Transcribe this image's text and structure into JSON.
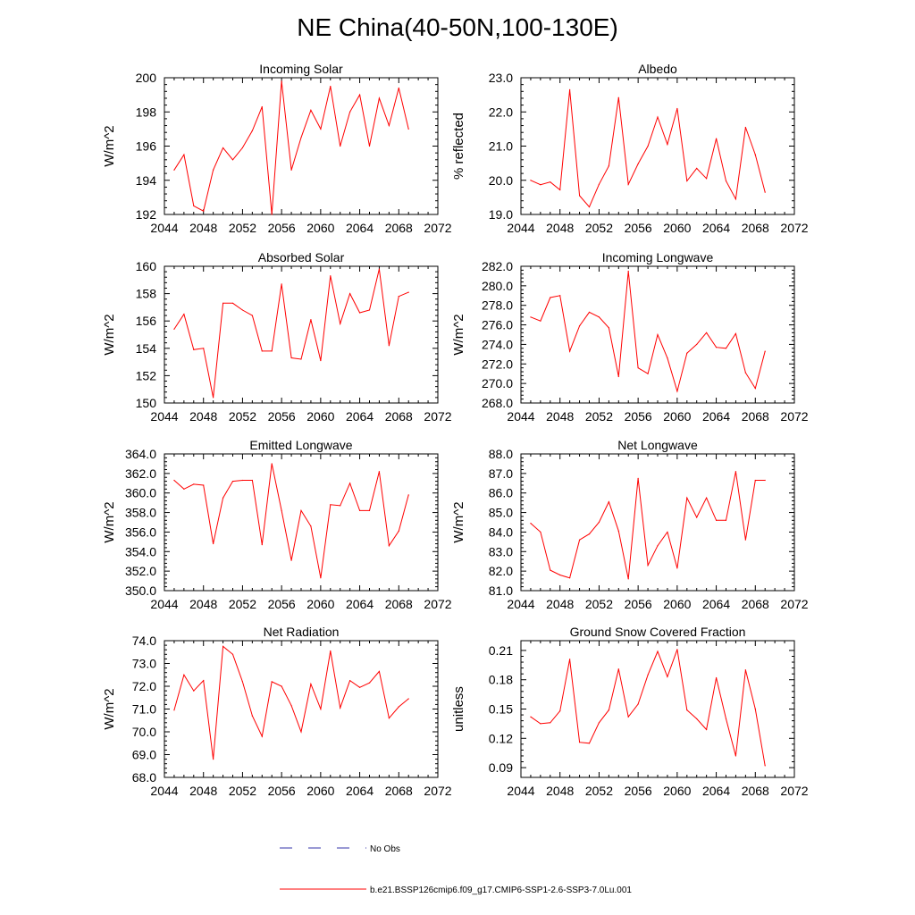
{
  "title": "NE China(40-50N,100-130E)",
  "colors": {
    "model_line": "#ff0000",
    "obs_line": "#3333aa",
    "axis": "#000000"
  },
  "legend": {
    "obs_label": "No Obs",
    "model_label": "b.e21.BSSP126cmip6.f09_g17.CMIP6-SSP1-2.6-SSP3-7.0Lu.001"
  },
  "chart_data": [
    {
      "type": "line",
      "title": "Incoming Solar",
      "ylabel": "W/m^2",
      "xlim": [
        2044,
        2072
      ],
      "ylim": [
        192,
        200
      ],
      "xticks": [
        "2044",
        "2048",
        "2052",
        "2056",
        "2060",
        "2064",
        "2068",
        "2072"
      ],
      "yticks": [
        "192",
        "194",
        "196",
        "198",
        "200"
      ],
      "series": [
        {
          "x": [
            2045,
            2046,
            2047,
            2048,
            2049,
            2050,
            2051,
            2052,
            2053,
            2054,
            2055,
            2056,
            2057,
            2058,
            2059,
            2060,
            2061,
            2062,
            2063,
            2064,
            2065,
            2066,
            2067,
            2068,
            2069
          ],
          "values": [
            194.6,
            195.5,
            192.5,
            192.2,
            194.6,
            195.9,
            195.2,
            195.9,
            196.9,
            198.3,
            192.0,
            199.8,
            194.6,
            196.5,
            198.1,
            197.0,
            199.5,
            196.0,
            198.0,
            199.0,
            196.0,
            198.8,
            197.2,
            199.4,
            197.0
          ]
        }
      ]
    },
    {
      "type": "line",
      "title": "Albedo",
      "ylabel": "% reflected",
      "xlim": [
        2044,
        2072
      ],
      "ylim": [
        19.0,
        23.0
      ],
      "xticks": [
        "2044",
        "2048",
        "2052",
        "2056",
        "2060",
        "2064",
        "2068",
        "2072"
      ],
      "yticks": [
        "19.0",
        "20.0",
        "21.0",
        "22.0",
        "23.0"
      ],
      "series": [
        {
          "x": [
            2045,
            2046,
            2047,
            2048,
            2049,
            2050,
            2051,
            2052,
            2053,
            2054,
            2055,
            2056,
            2057,
            2058,
            2059,
            2060,
            2061,
            2062,
            2063,
            2064,
            2065,
            2066,
            2067,
            2068,
            2069
          ],
          "values": [
            20.0,
            19.87,
            19.95,
            19.72,
            22.65,
            19.55,
            19.22,
            19.88,
            20.42,
            22.42,
            19.88,
            20.48,
            21.0,
            21.85,
            21.05,
            22.1,
            19.98,
            20.35,
            20.05,
            21.22,
            19.98,
            19.45,
            21.55,
            20.75,
            19.65
          ]
        }
      ]
    },
    {
      "type": "line",
      "title": "Absorbed Solar",
      "ylabel": "W/m^2",
      "xlim": [
        2044,
        2072
      ],
      "ylim": [
        150,
        160
      ],
      "xticks": [
        "2044",
        "2048",
        "2052",
        "2056",
        "2060",
        "2064",
        "2068",
        "2072"
      ],
      "yticks": [
        "150",
        "152",
        "154",
        "156",
        "158",
        "160"
      ],
      "series": [
        {
          "x": [
            2045,
            2046,
            2047,
            2048,
            2049,
            2050,
            2051,
            2052,
            2053,
            2054,
            2055,
            2056,
            2057,
            2058,
            2059,
            2060,
            2061,
            2062,
            2063,
            2064,
            2065,
            2066,
            2067,
            2068,
            2069
          ],
          "values": [
            155.4,
            156.5,
            153.9,
            154.0,
            150.4,
            157.3,
            157.3,
            156.8,
            156.4,
            153.8,
            153.8,
            158.7,
            153.3,
            153.2,
            156.1,
            153.1,
            159.3,
            155.8,
            158.0,
            156.6,
            156.8,
            159.8,
            154.2,
            157.8,
            158.1
          ]
        }
      ]
    },
    {
      "type": "line",
      "title": "Incoming Longwave",
      "ylabel": "W/m^2",
      "xlim": [
        2044,
        2072
      ],
      "ylim": [
        268.0,
        282.0
      ],
      "xticks": [
        "2044",
        "2048",
        "2052",
        "2056",
        "2060",
        "2064",
        "2068",
        "2072"
      ],
      "yticks": [
        "268.0",
        "270.0",
        "272.0",
        "274.0",
        "276.0",
        "278.0",
        "280.0",
        "282.0"
      ],
      "series": [
        {
          "x": [
            2045,
            2046,
            2047,
            2048,
            2049,
            2050,
            2051,
            2052,
            2053,
            2054,
            2055,
            2056,
            2057,
            2058,
            2059,
            2060,
            2061,
            2062,
            2063,
            2064,
            2065,
            2066,
            2067,
            2068,
            2069
          ],
          "values": [
            276.8,
            276.4,
            278.8,
            279.0,
            273.3,
            275.9,
            277.3,
            276.8,
            275.7,
            270.7,
            281.5,
            271.6,
            271.0,
            275.0,
            272.6,
            269.2,
            273.1,
            274.0,
            275.2,
            273.7,
            273.6,
            275.1,
            271.1,
            269.5,
            273.3
          ]
        }
      ]
    },
    {
      "type": "line",
      "title": "Emitted Longwave",
      "ylabel": "W/m^2",
      "xlim": [
        2044,
        2072
      ],
      "ylim": [
        350.0,
        364.0
      ],
      "xticks": [
        "2044",
        "2048",
        "2052",
        "2056",
        "2060",
        "2064",
        "2068",
        "2072"
      ],
      "yticks": [
        "350.0",
        "352.0",
        "354.0",
        "356.0",
        "358.0",
        "360.0",
        "362.0",
        "364.0"
      ],
      "series": [
        {
          "x": [
            2045,
            2046,
            2047,
            2048,
            2049,
            2050,
            2051,
            2052,
            2053,
            2054,
            2055,
            2056,
            2057,
            2058,
            2059,
            2060,
            2061,
            2062,
            2063,
            2064,
            2065,
            2066,
            2067,
            2068,
            2069
          ],
          "values": [
            361.3,
            360.4,
            360.9,
            360.8,
            354.8,
            359.5,
            361.2,
            361.3,
            361.3,
            354.7,
            363.0,
            358.2,
            353.1,
            358.2,
            356.6,
            351.3,
            358.8,
            358.7,
            361.0,
            358.2,
            358.2,
            362.2,
            354.6,
            356.1,
            359.8
          ]
        }
      ]
    },
    {
      "type": "line",
      "title": "Net Longwave",
      "ylabel": "W/m^2",
      "xlim": [
        2044,
        2072
      ],
      "ylim": [
        81.0,
        88.0
      ],
      "xticks": [
        "2044",
        "2048",
        "2052",
        "2056",
        "2060",
        "2064",
        "2068",
        "2072"
      ],
      "yticks": [
        "81.0",
        "82.0",
        "83.0",
        "84.0",
        "85.0",
        "86.0",
        "87.0",
        "88.0"
      ],
      "series": [
        {
          "x": [
            2045,
            2046,
            2047,
            2048,
            2049,
            2050,
            2051,
            2052,
            2053,
            2054,
            2055,
            2056,
            2057,
            2058,
            2059,
            2060,
            2061,
            2062,
            2063,
            2064,
            2065,
            2066,
            2067,
            2068,
            2069
          ],
          "values": [
            84.45,
            84.0,
            82.05,
            81.8,
            81.65,
            83.6,
            83.9,
            84.5,
            85.55,
            84.05,
            81.6,
            86.75,
            82.3,
            83.3,
            84.0,
            82.15,
            85.75,
            84.75,
            85.75,
            84.6,
            84.6,
            87.1,
            83.6,
            86.65,
            86.65
          ]
        }
      ]
    },
    {
      "type": "line",
      "title": "Net Radiation",
      "ylabel": "W/m^2",
      "xlim": [
        2044,
        2072
      ],
      "ylim": [
        68.0,
        74.0
      ],
      "xticks": [
        "2044",
        "2048",
        "2052",
        "2056",
        "2060",
        "2064",
        "2068",
        "2072"
      ],
      "yticks": [
        "68.0",
        "69.0",
        "70.0",
        "71.0",
        "72.0",
        "73.0",
        "74.0"
      ],
      "series": [
        {
          "x": [
            2045,
            2046,
            2047,
            2048,
            2049,
            2050,
            2051,
            2052,
            2053,
            2054,
            2055,
            2056,
            2057,
            2058,
            2059,
            2060,
            2061,
            2062,
            2063,
            2064,
            2065,
            2066,
            2067,
            2068,
            2069
          ],
          "values": [
            70.95,
            72.5,
            71.8,
            72.25,
            68.8,
            73.75,
            73.4,
            72.2,
            70.7,
            69.8,
            72.2,
            72.0,
            71.15,
            70.0,
            72.1,
            71.0,
            73.55,
            71.05,
            72.25,
            71.95,
            72.15,
            72.65,
            70.6,
            71.1,
            71.45
          ]
        }
      ]
    },
    {
      "type": "line",
      "title": "Ground Snow Covered Fraction",
      "ylabel": "unitless",
      "xlim": [
        2044,
        2072
      ],
      "ylim": [
        0.08,
        0.22
      ],
      "xticks": [
        "2044",
        "2048",
        "2052",
        "2056",
        "2060",
        "2064",
        "2068",
        "2072"
      ],
      "yticks": [
        "0.09",
        "0.12",
        "0.15",
        "0.18",
        "0.21"
      ],
      "ytick_values": [
        0.09,
        0.12,
        0.15,
        0.18,
        0.21
      ],
      "series": [
        {
          "x": [
            2045,
            2046,
            2047,
            2048,
            2049,
            2050,
            2051,
            2052,
            2053,
            2054,
            2055,
            2056,
            2057,
            2058,
            2059,
            2060,
            2061,
            2062,
            2063,
            2064,
            2065,
            2066,
            2067,
            2068,
            2069
          ],
          "values": [
            0.142,
            0.135,
            0.136,
            0.148,
            0.201,
            0.116,
            0.115,
            0.136,
            0.149,
            0.191,
            0.142,
            0.155,
            0.185,
            0.209,
            0.183,
            0.211,
            0.149,
            0.14,
            0.129,
            0.182,
            0.14,
            0.102,
            0.19,
            0.15,
            0.092
          ]
        }
      ]
    }
  ]
}
